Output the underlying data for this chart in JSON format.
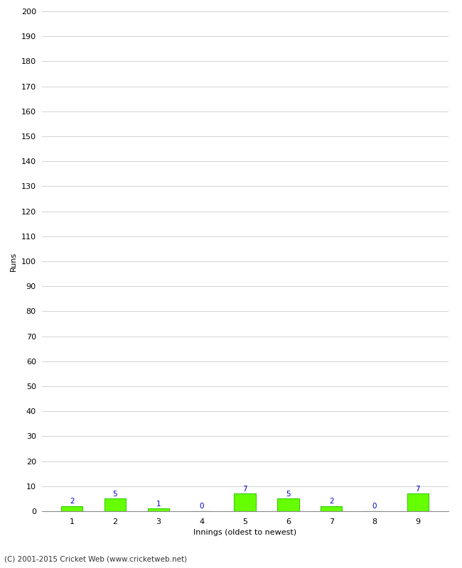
{
  "xlabel": "Innings (oldest to newest)",
  "ylabel": "Runs",
  "categories": [
    "1",
    "2",
    "3",
    "4",
    "5",
    "6",
    "7",
    "8",
    "9"
  ],
  "values": [
    2,
    5,
    1,
    0,
    7,
    5,
    2,
    0,
    7
  ],
  "bar_color": "#66ff00",
  "bar_edge_color": "#33cc00",
  "label_color": "#0000cc",
  "ylim": [
    0,
    200
  ],
  "yticks": [
    0,
    10,
    20,
    30,
    40,
    50,
    60,
    70,
    80,
    90,
    100,
    110,
    120,
    130,
    140,
    150,
    160,
    170,
    180,
    190,
    200
  ],
  "background_color": "#ffffff",
  "grid_color": "#cccccc",
  "footer": "(C) 2001-2015 Cricket Web (www.cricketweb.net)",
  "label_fontsize": 7.5,
  "axis_label_fontsize": 8,
  "tick_fontsize": 8,
  "footer_fontsize": 7.5
}
